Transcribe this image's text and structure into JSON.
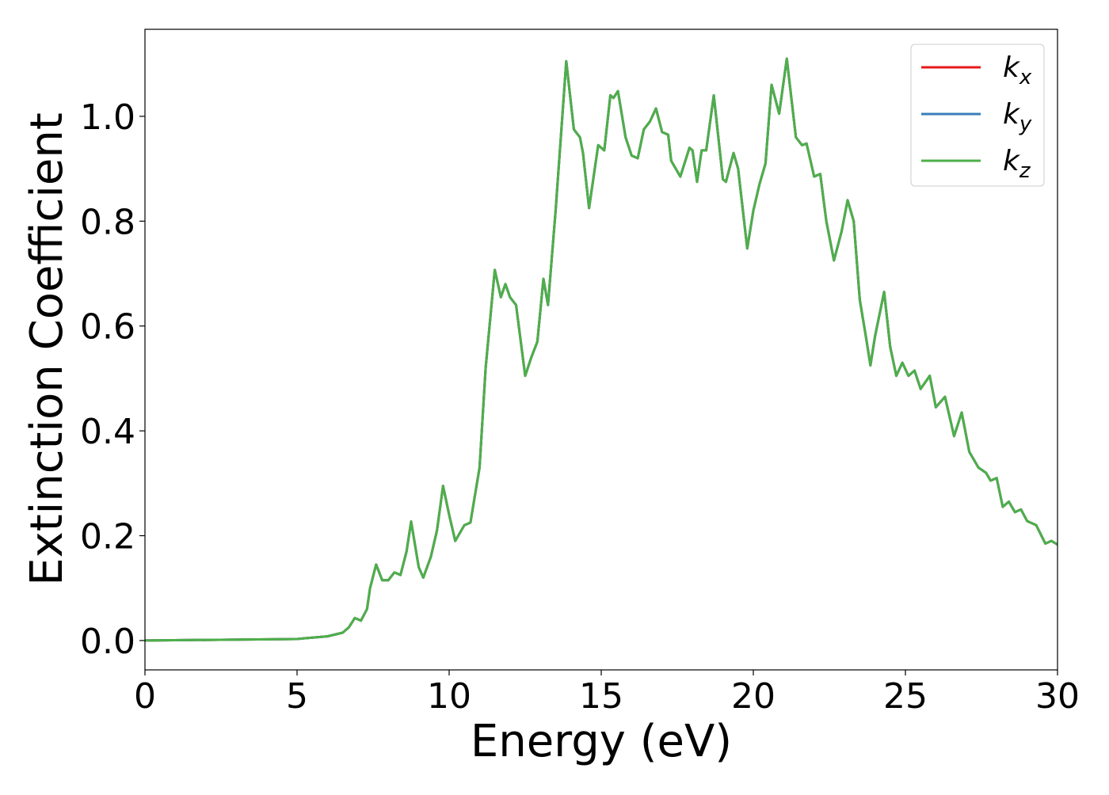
{
  "chart_data": {
    "type": "line",
    "xlabel": "Energy (eV)",
    "ylabel": "Extinction Coefficient",
    "xlim": [
      0,
      30
    ],
    "ylim": [
      -0.056,
      1.166
    ],
    "xticks": [
      0,
      5,
      10,
      15,
      20,
      25,
      30
    ],
    "yticks": [
      {
        "value": 0,
        "label": "0.0"
      },
      0.2,
      0.4,
      0.6,
      0.8,
      {
        "value": 1,
        "label": "1.0"
      }
    ],
    "legend": "upper right",
    "x": [
      0,
      5,
      6,
      6.5,
      6.7,
      6.9,
      7.1,
      7.3,
      7.4,
      7.6,
      7.8,
      8.0,
      8.2,
      8.4,
      8.6,
      8.75,
      9.0,
      9.15,
      9.4,
      9.6,
      9.8,
      10.0,
      10.2,
      10.5,
      10.7,
      11.0,
      11.2,
      11.5,
      11.7,
      11.85,
      12.0,
      12.2,
      12.5,
      12.7,
      12.9,
      13.1,
      13.25,
      13.5,
      13.85,
      14.1,
      14.3,
      14.4,
      14.6,
      14.9,
      15.0,
      15.1,
      15.3,
      15.4,
      15.55,
      15.8,
      16.0,
      16.2,
      16.4,
      16.6,
      16.8,
      17.0,
      17.2,
      17.3,
      17.6,
      17.9,
      18.0,
      18.15,
      18.3,
      18.45,
      18.7,
      19.0,
      19.1,
      19.35,
      19.5,
      19.8,
      20.0,
      20.2,
      20.4,
      20.6,
      20.85,
      21.1,
      21.4,
      21.6,
      21.75,
      22.0,
      22.2,
      22.4,
      22.65,
      22.9,
      23.1,
      23.3,
      23.5,
      23.7,
      23.85,
      24.0,
      24.3,
      24.5,
      24.7,
      24.9,
      25.1,
      25.3,
      25.5,
      25.8,
      26.0,
      26.3,
      26.6,
      26.85,
      27.1,
      27.4,
      27.65,
      27.8,
      28.0,
      28.2,
      28.4,
      28.6,
      28.8,
      29.0,
      29.3,
      29.6,
      29.8,
      30.0
    ],
    "series": [
      {
        "name": "kx",
        "color": "#e41a1c",
        "values": [
          0,
          0.003,
          0.008,
          0.015,
          0.025,
          0.043,
          0.038,
          0.06,
          0.1,
          0.145,
          0.115,
          0.115,
          0.13,
          0.125,
          0.17,
          0.227,
          0.14,
          0.12,
          0.16,
          0.21,
          0.295,
          0.24,
          0.19,
          0.22,
          0.225,
          0.33,
          0.52,
          0.707,
          0.655,
          0.68,
          0.655,
          0.64,
          0.505,
          0.54,
          0.57,
          0.69,
          0.64,
          0.82,
          1.105,
          0.975,
          0.96,
          0.93,
          0.825,
          0.945,
          0.94,
          0.935,
          1.04,
          1.035,
          1.048,
          0.96,
          0.925,
          0.92,
          0.975,
          0.99,
          1.015,
          0.97,
          0.965,
          0.915,
          0.885,
          0.94,
          0.935,
          0.875,
          0.935,
          0.935,
          1.04,
          0.88,
          0.875,
          0.93,
          0.9,
          0.748,
          0.82,
          0.87,
          0.91,
          1.06,
          1.005,
          1.11,
          0.96,
          0.945,
          0.948,
          0.885,
          0.89,
          0.8,
          0.725,
          0.78,
          0.84,
          0.8,
          0.65,
          0.58,
          0.525,
          0.58,
          0.665,
          0.56,
          0.505,
          0.53,
          0.505,
          0.515,
          0.48,
          0.505,
          0.445,
          0.465,
          0.39,
          0.435,
          0.36,
          0.33,
          0.32,
          0.305,
          0.31,
          0.255,
          0.265,
          0.245,
          0.25,
          0.228,
          0.22,
          0.185,
          0.19,
          0.183
        ]
      },
      {
        "name": "ky",
        "color": "#377eb8",
        "values": [
          0,
          0.003,
          0.008,
          0.015,
          0.025,
          0.043,
          0.038,
          0.06,
          0.1,
          0.145,
          0.115,
          0.115,
          0.13,
          0.125,
          0.17,
          0.227,
          0.14,
          0.12,
          0.16,
          0.21,
          0.295,
          0.24,
          0.19,
          0.22,
          0.225,
          0.33,
          0.52,
          0.707,
          0.655,
          0.68,
          0.655,
          0.64,
          0.505,
          0.54,
          0.57,
          0.69,
          0.64,
          0.82,
          1.105,
          0.975,
          0.96,
          0.93,
          0.825,
          0.945,
          0.94,
          0.935,
          1.04,
          1.035,
          1.048,
          0.96,
          0.925,
          0.92,
          0.975,
          0.99,
          1.015,
          0.97,
          0.965,
          0.915,
          0.885,
          0.94,
          0.935,
          0.875,
          0.935,
          0.935,
          1.04,
          0.88,
          0.875,
          0.93,
          0.9,
          0.748,
          0.82,
          0.87,
          0.91,
          1.06,
          1.005,
          1.11,
          0.96,
          0.945,
          0.948,
          0.885,
          0.89,
          0.8,
          0.725,
          0.78,
          0.84,
          0.8,
          0.65,
          0.58,
          0.525,
          0.58,
          0.665,
          0.56,
          0.505,
          0.53,
          0.505,
          0.515,
          0.48,
          0.505,
          0.445,
          0.465,
          0.39,
          0.435,
          0.36,
          0.33,
          0.32,
          0.305,
          0.31,
          0.255,
          0.265,
          0.245,
          0.25,
          0.228,
          0.22,
          0.185,
          0.19,
          0.183
        ]
      },
      {
        "name": "kz",
        "color": "#4daf4a",
        "values": [
          0,
          0.003,
          0.008,
          0.015,
          0.025,
          0.043,
          0.038,
          0.06,
          0.1,
          0.145,
          0.115,
          0.115,
          0.13,
          0.125,
          0.17,
          0.227,
          0.14,
          0.12,
          0.16,
          0.21,
          0.295,
          0.24,
          0.19,
          0.22,
          0.225,
          0.33,
          0.52,
          0.707,
          0.655,
          0.68,
          0.655,
          0.64,
          0.505,
          0.54,
          0.57,
          0.69,
          0.64,
          0.82,
          1.105,
          0.975,
          0.96,
          0.93,
          0.825,
          0.945,
          0.94,
          0.935,
          1.04,
          1.035,
          1.048,
          0.96,
          0.925,
          0.92,
          0.975,
          0.99,
          1.015,
          0.97,
          0.965,
          0.915,
          0.885,
          0.94,
          0.935,
          0.875,
          0.935,
          0.935,
          1.04,
          0.88,
          0.875,
          0.93,
          0.9,
          0.748,
          0.82,
          0.87,
          0.91,
          1.06,
          1.005,
          1.11,
          0.96,
          0.945,
          0.948,
          0.885,
          0.89,
          0.8,
          0.725,
          0.78,
          0.84,
          0.8,
          0.65,
          0.58,
          0.525,
          0.58,
          0.665,
          0.56,
          0.505,
          0.53,
          0.505,
          0.515,
          0.48,
          0.505,
          0.445,
          0.465,
          0.39,
          0.435,
          0.36,
          0.33,
          0.32,
          0.305,
          0.31,
          0.255,
          0.265,
          0.245,
          0.25,
          0.228,
          0.22,
          0.185,
          0.19,
          0.183
        ]
      }
    ]
  }
}
